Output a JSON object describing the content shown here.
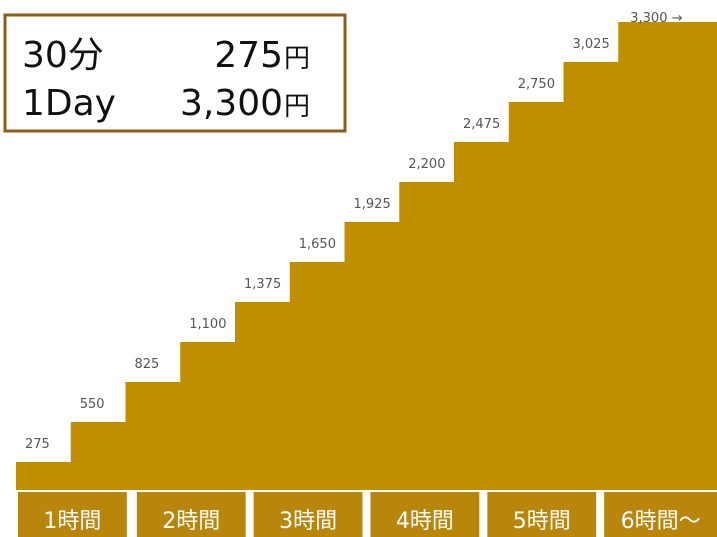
{
  "chart_data": {
    "type": "step",
    "values": [
      275,
      550,
      825,
      1100,
      1375,
      1650,
      1925,
      2200,
      2475,
      2750,
      3025,
      3300
    ],
    "value_labels": [
      "275",
      "550",
      "825",
      "1,100",
      "1,375",
      "1,650",
      "1,925",
      "2,200",
      "2,475",
      "2,750",
      "3,025",
      "3,300 →"
    ],
    "color": "#bf8f00",
    "period_labels": [
      "1時間",
      "2時間",
      "3時間",
      "4時間",
      "5時間",
      "6時間〜"
    ]
  },
  "fee_box": {
    "rows": [
      {
        "label": "30分",
        "price": "275",
        "unit": "円"
      },
      {
        "label": "1Day",
        "price": "3,300",
        "unit": "円"
      }
    ]
  }
}
